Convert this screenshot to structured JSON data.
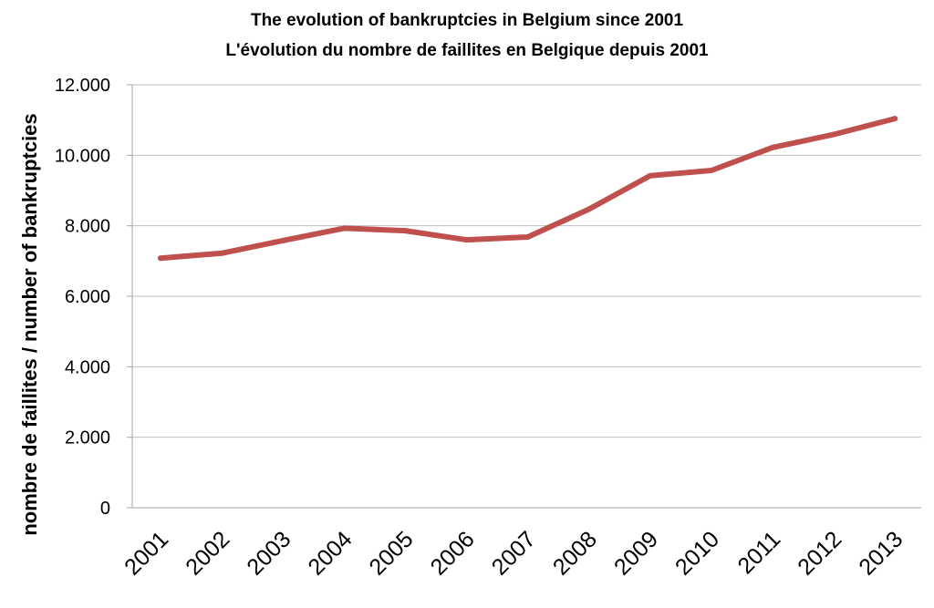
{
  "chart_data": {
    "type": "line",
    "title": "The evolution of bankruptcies in Belgium since 2001",
    "subtitle": "L'évolution du nombre de faillites en Belgique depuis 2001",
    "xlabel": "",
    "ylabel": "nombre de faillites / number of bankruptcies",
    "categories": [
      "2001",
      "2002",
      "2003",
      "2004",
      "2005",
      "2006",
      "2007",
      "2008",
      "2009",
      "2010",
      "2011",
      "2012",
      "2013"
    ],
    "series": [
      {
        "values": [
          7080,
          7220,
          7580,
          7930,
          7860,
          7600,
          7680,
          8470,
          9420,
          9570,
          10220,
          10590,
          11040
        ],
        "color": "#c0504d"
      }
    ],
    "ylim": [
      0,
      12000
    ],
    "yticks": [
      0,
      2000,
      4000,
      6000,
      8000,
      10000,
      12000
    ],
    "ytick_labels": [
      "0",
      "2.000",
      "4.000",
      "6.000",
      "8.000",
      "10.000",
      "12.000"
    ],
    "grid": true,
    "legend": "none",
    "gridline_color": "#bfbfbf",
    "axis_color": "#a6a6a6"
  }
}
